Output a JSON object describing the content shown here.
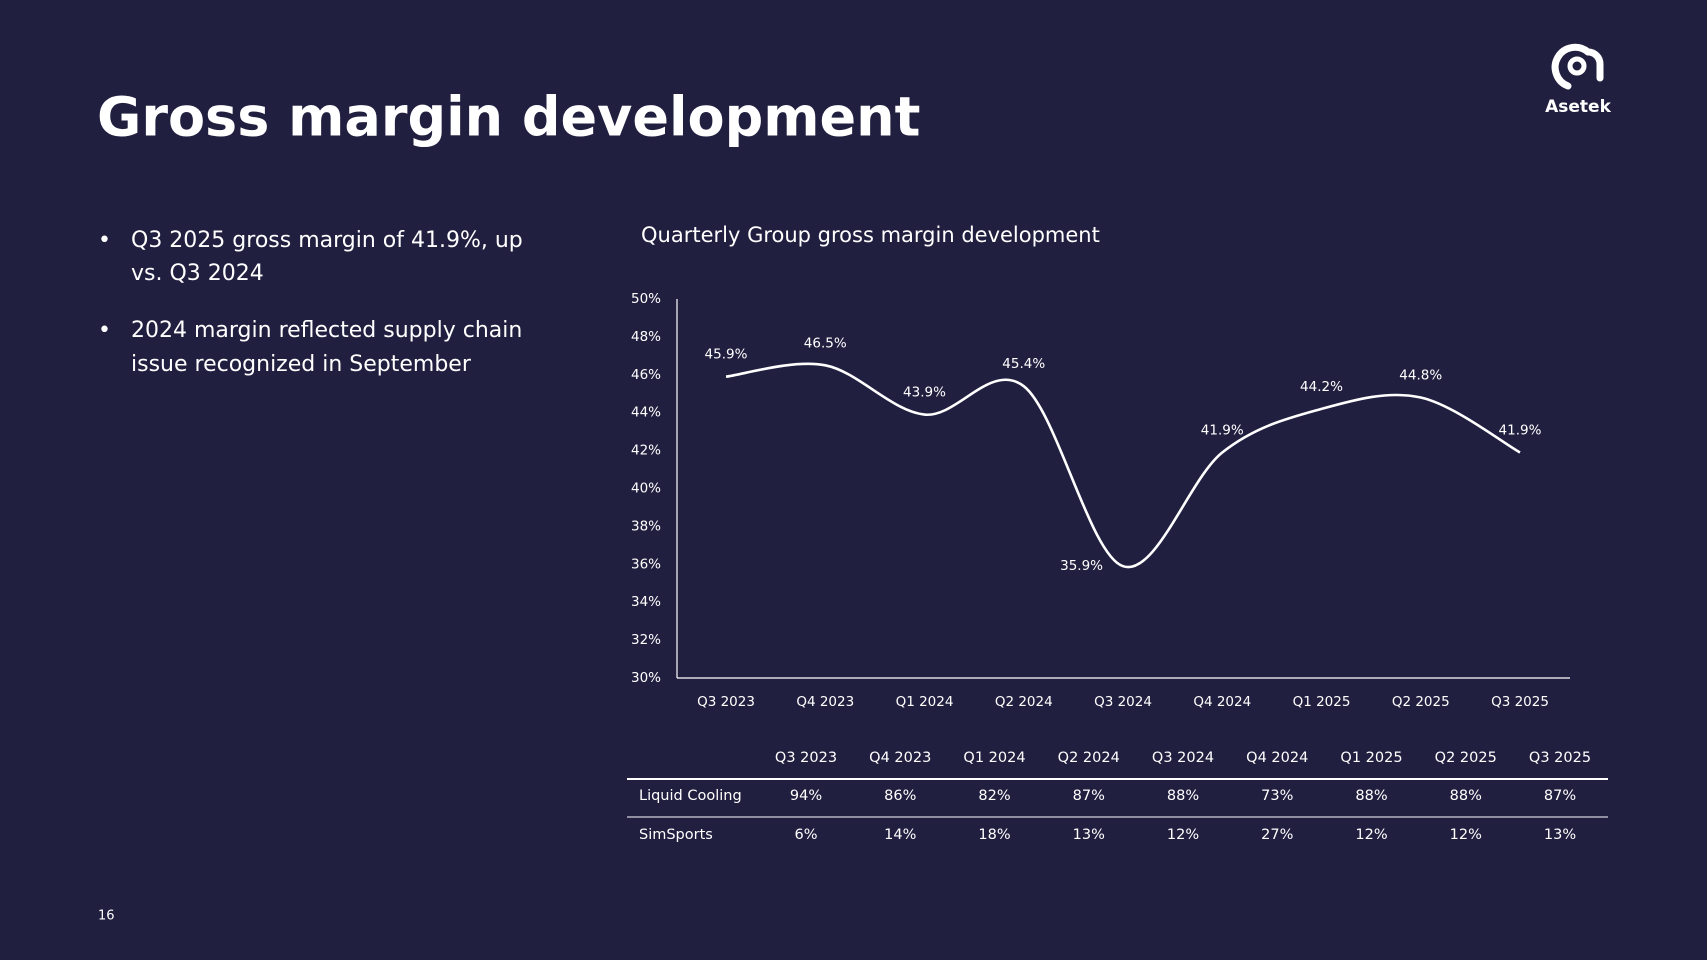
{
  "header": {
    "title": "Gross margin development",
    "logo": "Asetek"
  },
  "bullets": [
    [
      "Q3 2025 gross margin of 41.9%, up",
      "vs. Q3 2024"
    ],
    [
      "2024 margin reflected supply chain",
      "issue recognized in September"
    ]
  ],
  "chart_data": {
    "type": "line",
    "title": "Quarterly Group gross margin development",
    "categories": [
      "Q3 2023",
      "Q4 2023",
      "Q1 2024",
      "Q2 2024",
      "Q3 2024",
      "Q4 2024",
      "Q1 2025",
      "Q2 2025",
      "Q3 2025"
    ],
    "values": [
      45.9,
      46.5,
      43.9,
      45.4,
      35.9,
      41.9,
      44.2,
      44.8,
      41.9
    ],
    "value_labels": [
      "45.9%",
      "46.5%",
      "43.9%",
      "45.4%",
      "35.9%",
      "41.9%",
      "44.2%",
      "44.8%",
      "41.9%"
    ],
    "color": "#ffffff",
    "smooth": true,
    "grid": false,
    "ylim": [
      30,
      50
    ],
    "yticks": [
      {
        "value": 30,
        "label": "30%"
      },
      {
        "value": 32,
        "label": "32%"
      },
      {
        "value": 34,
        "label": "34%"
      },
      {
        "value": 36,
        "label": "36%"
      },
      {
        "value": 38,
        "label": "38%"
      },
      {
        "value": 40,
        "label": "40%"
      },
      {
        "value": 42,
        "label": "42%"
      },
      {
        "value": 44,
        "label": "44%"
      },
      {
        "value": 46,
        "label": "46%"
      },
      {
        "value": 48,
        "label": "48%"
      },
      {
        "value": 50,
        "label": "50%"
      }
    ]
  },
  "table": {
    "columns": [
      "Q3 2023",
      "Q4 2023",
      "Q1 2024",
      "Q2 2024",
      "Q3 2024",
      "Q4 2024",
      "Q1 2025",
      "Q2 2025",
      "Q3 2025"
    ],
    "rows": [
      [
        "Liquid Cooling",
        "94%",
        "86%",
        "82%",
        "87%",
        "88%",
        "73%",
        "88%",
        "88%",
        "87%"
      ],
      [
        "SimSports",
        "6%",
        "14%",
        "18%",
        "13%",
        "12%",
        "27%",
        "12%",
        "12%",
        "13%"
      ]
    ]
  },
  "page_number": "16"
}
